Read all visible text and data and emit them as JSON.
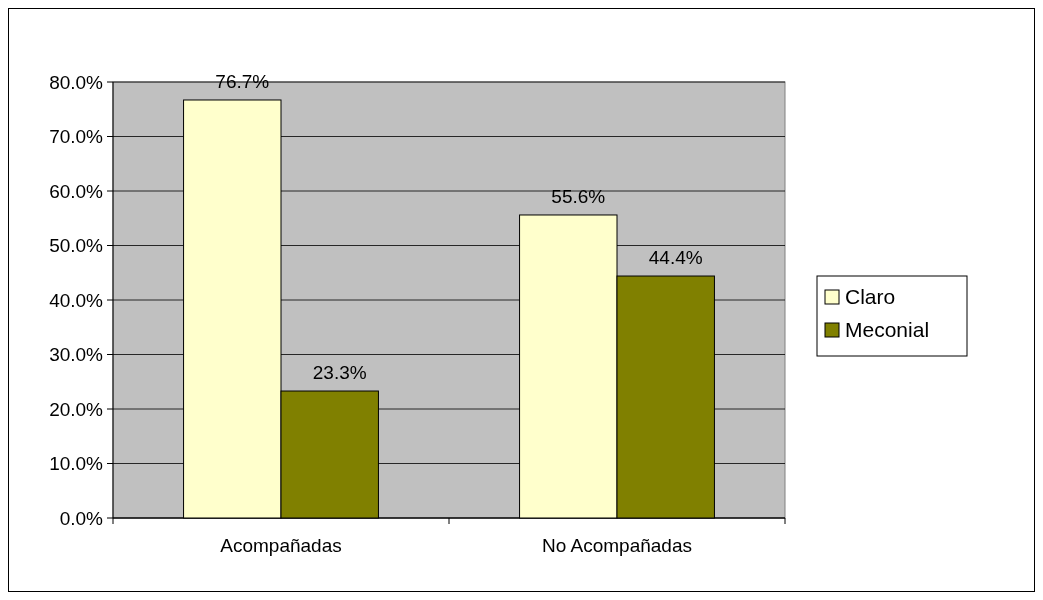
{
  "chart_data": {
    "type": "bar",
    "categories": [
      "Acompañadas",
      "No Acompañadas"
    ],
    "series": [
      {
        "name": "Claro",
        "color": "#ffffcc",
        "values": [
          76.7,
          55.6
        ]
      },
      {
        "name": "Meconial",
        "color": "#808000",
        "values": [
          23.3,
          44.4
        ]
      }
    ],
    "ylim": [
      0,
      80
    ],
    "yticks": [
      {
        "value": 0,
        "label": "0.0%"
      },
      {
        "value": 10,
        "label": "10.0%"
      },
      {
        "value": 20,
        "label": "20.0%"
      },
      {
        "value": 30,
        "label": "30.0%"
      },
      {
        "value": 40,
        "label": "40.0%"
      },
      {
        "value": 50,
        "label": "50.0%"
      },
      {
        "value": 60,
        "label": "60.0%"
      },
      {
        "value": 70,
        "label": "70.0%"
      },
      {
        "value": 80,
        "label": "80.0%"
      }
    ],
    "value_labels": [
      [
        "76.7%",
        "55.6%"
      ],
      [
        "23.3%",
        "44.4%"
      ]
    ],
    "grid": "y",
    "legend": "right"
  }
}
